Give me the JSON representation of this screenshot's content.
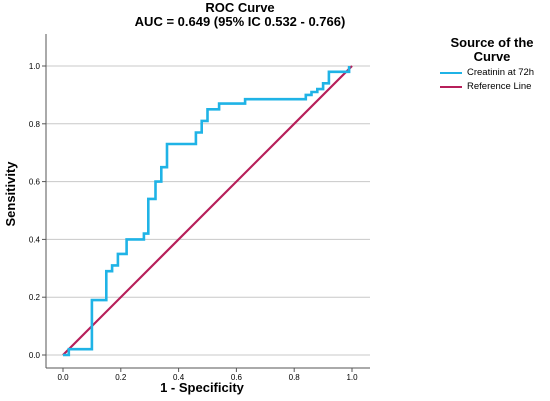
{
  "chart_data": {
    "type": "line",
    "title": "ROC Curve",
    "subtitle": "AUC = 0.649 (95% IC 0.532 - 0.766)",
    "xlabel": "1 - Specificity",
    "ylabel": "Sensitivity",
    "xlim": [
      0,
      1
    ],
    "ylim": [
      0,
      1
    ],
    "xticks": [
      "0.0",
      "0.2",
      "0.4",
      "0.6",
      "0.8",
      "1.0"
    ],
    "yticks": [
      "0.0",
      "0.2",
      "0.4",
      "0.6",
      "0.8",
      "1.0"
    ],
    "grid": "horizontal",
    "legend": {
      "title": "Source of the Curve",
      "position": "right"
    },
    "series": [
      {
        "name": "Creatinin at 72h",
        "color": "#1fb3e6",
        "step": true,
        "x": [
          0.0,
          0.02,
          0.02,
          0.1,
          0.1,
          0.15,
          0.15,
          0.17,
          0.17,
          0.19,
          0.19,
          0.22,
          0.22,
          0.28,
          0.28,
          0.295,
          0.295,
          0.32,
          0.32,
          0.34,
          0.34,
          0.36,
          0.36,
          0.46,
          0.46,
          0.48,
          0.48,
          0.5,
          0.5,
          0.54,
          0.54,
          0.63,
          0.63,
          0.78,
          0.78,
          0.84,
          0.84,
          0.86,
          0.86,
          0.88,
          0.88,
          0.9,
          0.9,
          0.92,
          0.92,
          0.99,
          0.99
        ],
        "y": [
          0.0,
          0.0,
          0.02,
          0.02,
          0.19,
          0.19,
          0.29,
          0.29,
          0.31,
          0.31,
          0.35,
          0.35,
          0.4,
          0.4,
          0.42,
          0.42,
          0.54,
          0.54,
          0.6,
          0.6,
          0.65,
          0.65,
          0.73,
          0.73,
          0.77,
          0.77,
          0.81,
          0.81,
          0.85,
          0.85,
          0.87,
          0.87,
          0.885,
          0.885,
          0.885,
          0.885,
          0.9,
          0.9,
          0.91,
          0.91,
          0.92,
          0.92,
          0.94,
          0.94,
          0.98,
          0.98,
          1.0
        ]
      },
      {
        "name": "Reference Line",
        "color": "#b71f5a",
        "x": [
          0,
          1
        ],
        "y": [
          0,
          1
        ]
      }
    ]
  }
}
